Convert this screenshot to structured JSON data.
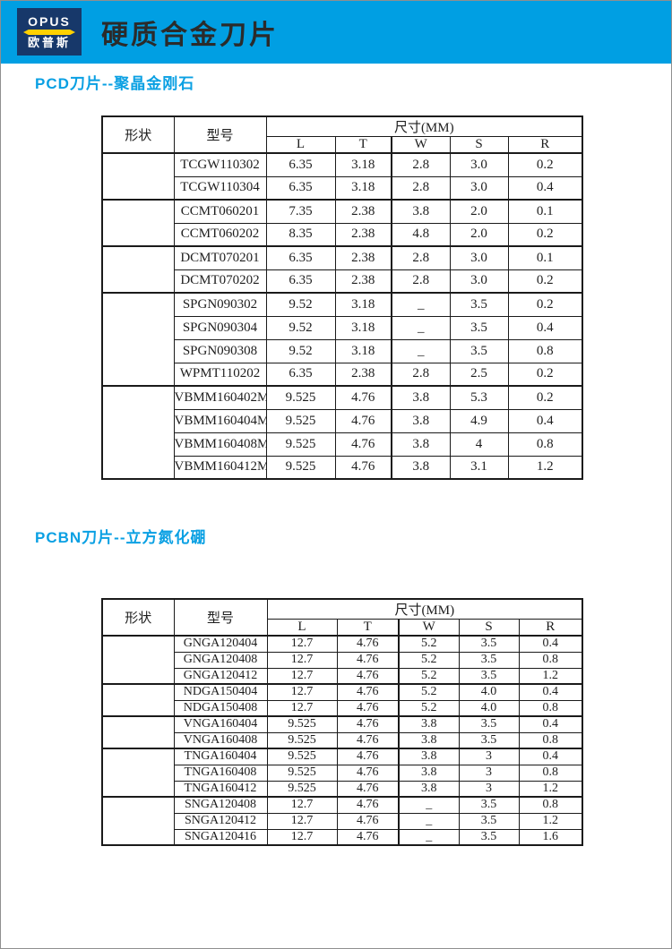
{
  "header": {
    "logo_en": "OPUS",
    "logo_cn": "欧普斯",
    "title": "硬质合金刀片"
  },
  "colors": {
    "header_bg": "#009FE3",
    "logo_bg": "#17386A",
    "logo_accent": "#FFD100",
    "section_title": "#0AA0E3",
    "table_border": "#1A1A1A"
  },
  "sections": [
    {
      "id": "pcd",
      "title": "PCD刀片--聚晶金刚石",
      "table": {
        "shape_header": "形状",
        "model_header": "型号",
        "size_header": "尺寸(MM)",
        "size_cols": [
          "L",
          "T",
          "W",
          "S",
          "R"
        ],
        "groups": [
          {
            "rows": [
              {
                "model": "TCGW110302",
                "dims": [
                  "6.35",
                  "3.18",
                  "2.8",
                  "3.0",
                  "0.2"
                ]
              },
              {
                "model": "TCGW110304",
                "dims": [
                  "6.35",
                  "3.18",
                  "2.8",
                  "3.0",
                  "0.4"
                ]
              }
            ]
          },
          {
            "rows": [
              {
                "model": "CCMT060201",
                "dims": [
                  "7.35",
                  "2.38",
                  "3.8",
                  "2.0",
                  "0.1"
                ]
              },
              {
                "model": "CCMT060202",
                "dims": [
                  "8.35",
                  "2.38",
                  "4.8",
                  "2.0",
                  "0.2"
                ]
              }
            ]
          },
          {
            "rows": [
              {
                "model": "DCMT070201",
                "dims": [
                  "6.35",
                  "2.38",
                  "2.8",
                  "3.0",
                  "0.1"
                ]
              },
              {
                "model": "DCMT070202",
                "dims": [
                  "6.35",
                  "2.38",
                  "2.8",
                  "3.0",
                  "0.2"
                ]
              }
            ]
          },
          {
            "rows": [
              {
                "model": "SPGN090302",
                "dims": [
                  "9.52",
                  "3.18",
                  "_",
                  "3.5",
                  "0.2"
                ]
              },
              {
                "model": "SPGN090304",
                "dims": [
                  "9.52",
                  "3.18",
                  "_",
                  "3.5",
                  "0.4"
                ]
              },
              {
                "model": "SPGN090308",
                "dims": [
                  "9.52",
                  "3.18",
                  "_",
                  "3.5",
                  "0.8"
                ]
              },
              {
                "model": "WPMT110202",
                "dims": [
                  "6.35",
                  "2.38",
                  "2.8",
                  "2.5",
                  "0.2"
                ]
              }
            ]
          },
          {
            "rows": [
              {
                "model": "VBMM160402M",
                "dims": [
                  "9.525",
                  "4.76",
                  "3.8",
                  "5.3",
                  "0.2"
                ]
              },
              {
                "model": "VBMM160404M",
                "dims": [
                  "9.525",
                  "4.76",
                  "3.8",
                  "4.9",
                  "0.4"
                ]
              },
              {
                "model": "VBMM160408M",
                "dims": [
                  "9.525",
                  "4.76",
                  "3.8",
                  "4",
                  "0.8"
                ]
              },
              {
                "model": "VBMM160412M",
                "dims": [
                  "9.525",
                  "4.76",
                  "3.8",
                  "3.1",
                  "1.2"
                ]
              }
            ]
          }
        ]
      }
    },
    {
      "id": "pcbn",
      "title": "PCBN刀片--立方氮化硼",
      "table": {
        "shape_header": "形状",
        "model_header": "型号",
        "size_header": "尺寸(MM)",
        "size_cols": [
          "L",
          "T",
          "W",
          "S",
          "R"
        ],
        "groups": [
          {
            "rows": [
              {
                "model": "GNGA120404",
                "dims": [
                  "12.7",
                  "4.76",
                  "5.2",
                  "3.5",
                  "0.4"
                ]
              },
              {
                "model": "GNGA120408",
                "dims": [
                  "12.7",
                  "4.76",
                  "5.2",
                  "3.5",
                  "0.8"
                ]
              },
              {
                "model": "GNGA120412",
                "dims": [
                  "12.7",
                  "4.76",
                  "5.2",
                  "3.5",
                  "1.2"
                ]
              }
            ]
          },
          {
            "rows": [
              {
                "model": "NDGA150404",
                "dims": [
                  "12.7",
                  "4.76",
                  "5.2",
                  "4.0",
                  "0.4"
                ]
              },
              {
                "model": "NDGA150408",
                "dims": [
                  "12.7",
                  "4.76",
                  "5.2",
                  "4.0",
                  "0.8"
                ]
              }
            ]
          },
          {
            "rows": [
              {
                "model": "VNGA160404",
                "dims": [
                  "9.525",
                  "4.76",
                  "3.8",
                  "3.5",
                  "0.4"
                ]
              },
              {
                "model": "VNGA160408",
                "dims": [
                  "9.525",
                  "4.76",
                  "3.8",
                  "3.5",
                  "0.8"
                ]
              }
            ]
          },
          {
            "rows": [
              {
                "model": "TNGA160404",
                "dims": [
                  "9.525",
                  "4.76",
                  "3.8",
                  "3",
                  "0.4"
                ]
              },
              {
                "model": "TNGA160408",
                "dims": [
                  "9.525",
                  "4.76",
                  "3.8",
                  "3",
                  "0.8"
                ]
              },
              {
                "model": "TNGA160412",
                "dims": [
                  "9.525",
                  "4.76",
                  "3.8",
                  "3",
                  "1.2"
                ]
              }
            ]
          },
          {
            "rows": [
              {
                "model": "SNGA120408",
                "dims": [
                  "12.7",
                  "4.76",
                  "_",
                  "3.5",
                  "0.8"
                ]
              },
              {
                "model": "SNGA120412",
                "dims": [
                  "12.7",
                  "4.76",
                  "_",
                  "3.5",
                  "1.2"
                ]
              },
              {
                "model": "SNGA120416",
                "dims": [
                  "12.7",
                  "4.76",
                  "_",
                  "3.5",
                  "1.6"
                ]
              }
            ]
          }
        ]
      }
    }
  ]
}
